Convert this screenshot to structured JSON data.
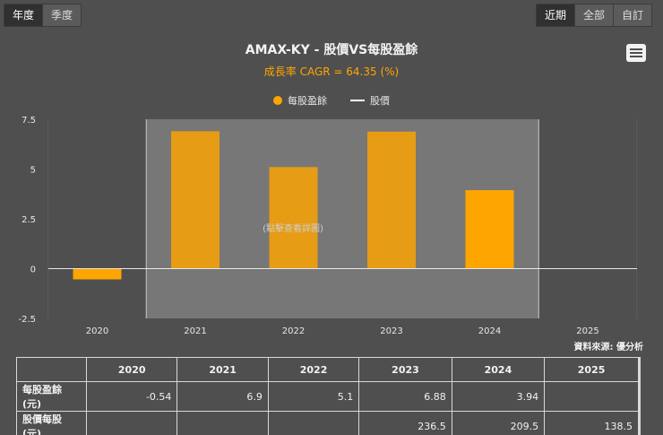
{
  "toggle_left": [
    {
      "label": "年度",
      "active": true
    },
    {
      "label": "季度",
      "active": false
    }
  ],
  "toggle_right": [
    {
      "label": "近期",
      "active": true
    },
    {
      "label": "全部",
      "active": false
    },
    {
      "label": "自訂",
      "active": false
    }
  ],
  "chart_data": {
    "type": "bar",
    "title": "AMAX-KY - 股價VS每股盈餘",
    "subtitle": "成長率 CAGR = 64.35 (%)",
    "categories": [
      "2020",
      "2021",
      "2022",
      "2023",
      "2024",
      "2025"
    ],
    "series": [
      {
        "name": "每股盈餘",
        "type": "bar",
        "color": "#ffa500",
        "values": [
          -0.54,
          6.9,
          5.1,
          6.88,
          3.94,
          null
        ]
      },
      {
        "name": "股價",
        "type": "line",
        "color": "#ffffff",
        "values": [
          null,
          null,
          null,
          236.5,
          209.5,
          138.5
        ]
      }
    ],
    "y_ticks": [
      "7.5",
      "5",
      "2.5",
      "0",
      "-2.5"
    ],
    "ylim": [
      -2.5,
      7.5
    ],
    "overlay_text": "(點擊查看詳圖)",
    "highlight_range": [
      "2021",
      "2024"
    ]
  },
  "source": "資料來源: 優分析",
  "table": {
    "headers": [
      "",
      "2020",
      "2021",
      "2022",
      "2023",
      "2024",
      "2025"
    ],
    "rows": [
      {
        "label": "每股盈餘(元)",
        "cells": [
          "-0.54",
          "6.9",
          "5.1",
          "6.88",
          "3.94",
          ""
        ]
      },
      {
        "label": "股價每股(元)",
        "cells": [
          "",
          "",
          "",
          "236.5",
          "209.5",
          "138.5"
        ]
      }
    ]
  }
}
